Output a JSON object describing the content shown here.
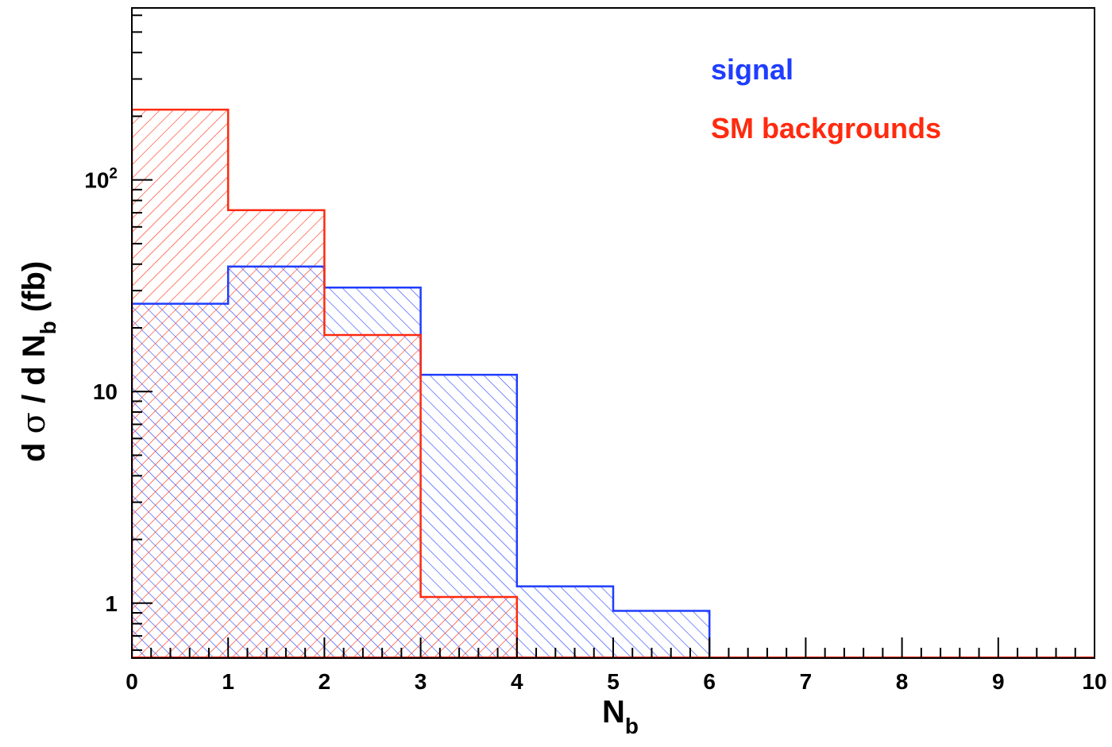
{
  "chart_data": {
    "type": "bar",
    "histogram": true,
    "bin_edges": [
      0,
      1,
      2,
      3,
      4,
      5,
      6,
      7,
      8,
      9,
      10
    ],
    "series": [
      {
        "name": "signal",
        "color": "#1f3dff",
        "hatch": "forward-diagonal",
        "values": [
          26,
          39,
          31,
          12,
          1.2,
          0.92,
          0,
          0,
          0,
          0
        ]
      },
      {
        "name": "SM backgrounds",
        "color": "#ff2a0f",
        "hatch": "backward-diagonal",
        "values": [
          215,
          72,
          18.5,
          1.07,
          0,
          0,
          0,
          0,
          0,
          0
        ]
      }
    ],
    "xlim": [
      0,
      10
    ],
    "ylim": [
      0.55,
      650
    ],
    "yscale": "log",
    "x_ticks": [
      "0",
      "1",
      "2",
      "3",
      "4",
      "5",
      "6",
      "7",
      "8",
      "9",
      "10"
    ],
    "y_ticks": [
      {
        "value": 1,
        "label": "1"
      },
      {
        "value": 10,
        "label": "10"
      },
      {
        "value": 100,
        "label": "10",
        "sup": "2"
      }
    ],
    "xlabel": {
      "main": "N",
      "sub": "b"
    },
    "ylabel": {
      "pre": "d ",
      "sigma": "σ",
      "mid": " / d N",
      "sub": "b",
      "post": " (fb)"
    },
    "legend_position": "top-right",
    "grid": false
  }
}
